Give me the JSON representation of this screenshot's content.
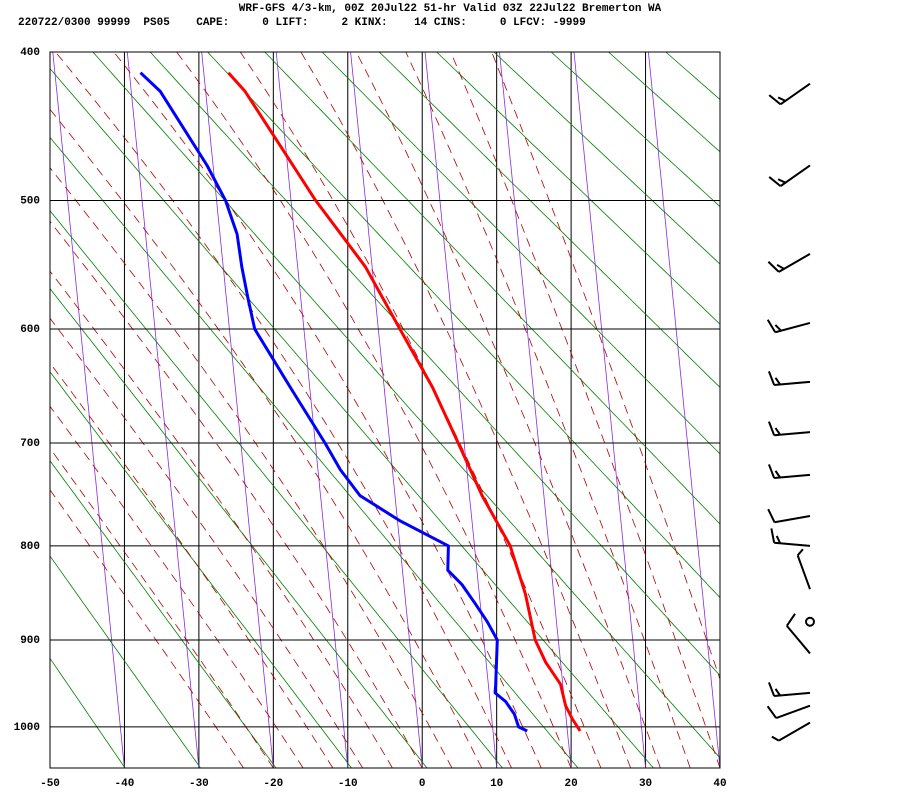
{
  "chart_data": {
    "type": "skewt",
    "title": "WRF-GFS 4/3-km, 00Z 20Jul22 51-hr Valid 03Z 22Jul22 Bremerton WA",
    "subtitle": "220722/0300 99999  PS05    CAPE:     0 LIFT:     2 KINX:    14 CINS:     0 LFCV: -9999",
    "xlim": [
      -50,
      40
    ],
    "xticks": [
      -50,
      -40,
      -30,
      -20,
      -10,
      0,
      10,
      20,
      30,
      40
    ],
    "ylim": [
      1050,
      400
    ],
    "yticks": [
      400,
      500,
      600,
      700,
      800,
      900,
      1000
    ],
    "y_scale": "exner",
    "grid": true,
    "series": [
      {
        "name": "Temperature",
        "color": "#ff0000",
        "pressure": [
          1005,
          990,
          975,
          950,
          925,
          900,
          850,
          800,
          750,
          700,
          650,
          600,
          550,
          500,
          425,
          413
        ],
        "values": [
          21.7,
          20.8,
          20.1,
          19.7,
          18.0,
          16.9,
          16.2,
          14.8,
          11.7,
          9.2,
          6.5,
          2.9,
          -0.9,
          -6.7,
          -14.7,
          -16.7
        ]
      },
      {
        "name": "Dewpoint",
        "color": "#0000ff",
        "pressure": [
          1005,
          1000,
          985,
          970,
          960,
          950,
          900,
          880,
          860,
          840,
          825,
          800,
          775,
          750,
          725,
          700,
          650,
          600,
          575,
          550,
          525,
          500,
          475,
          425,
          413
        ],
        "values": [
          14.6,
          13.5,
          13.1,
          12.1,
          10.8,
          11.0,
          11.8,
          10.7,
          9.3,
          7.8,
          6.1,
          6.5,
          0.4,
          -4.7,
          -7.0,
          -8.7,
          -12.6,
          -16.6,
          -17.1,
          -17.5,
          -17.7,
          -18.8,
          -20.8,
          -26.1,
          -28.5
        ]
      }
    ],
    "wind": {
      "pressure": [
        420,
        475,
        540,
        595,
        645,
        690,
        730,
        770,
        800,
        845,
        880,
        915,
        960,
        975,
        995
      ],
      "direction": [
        235,
        235,
        240,
        255,
        265,
        265,
        265,
        260,
        275,
        340,
        0,
        320,
        265,
        250,
        240
      ],
      "speed": [
        15,
        15,
        15,
        15,
        15,
        15,
        15,
        10,
        15,
        5,
        0,
        10,
        15,
        10,
        5
      ]
    }
  }
}
